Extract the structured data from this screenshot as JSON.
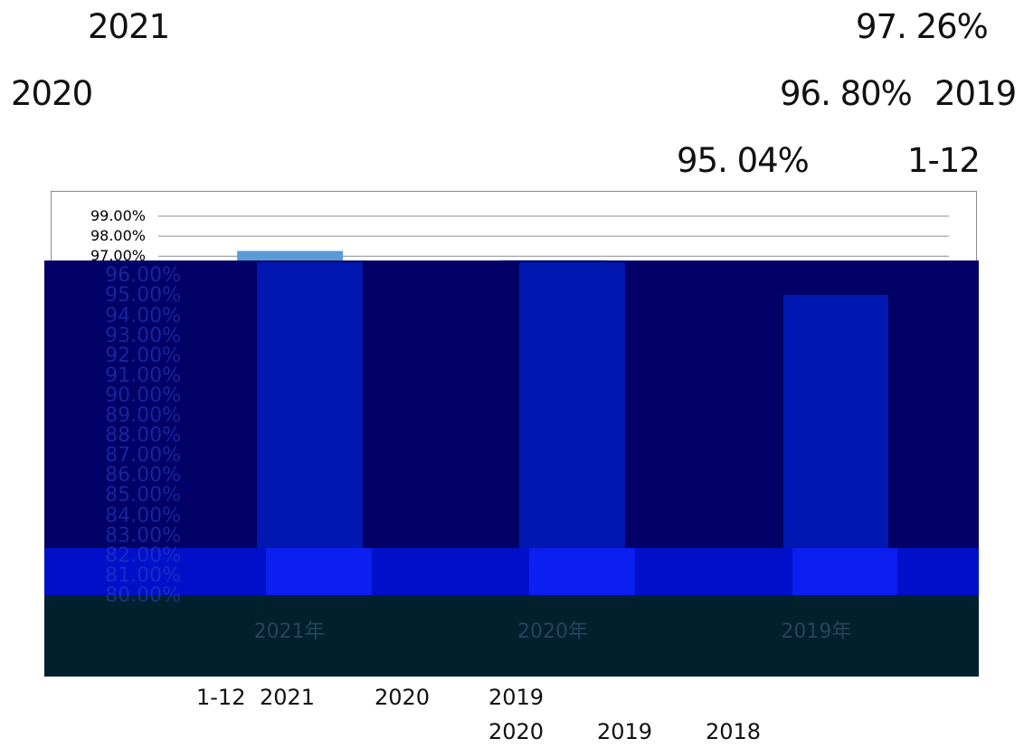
{
  "text": {
    "l1_left": "2021",
    "l1_right": "97. 26%",
    "l2_left": "2020",
    "l2_mid": "96. 80%",
    "l2_right": "2019",
    "l3_mid": "95. 04%",
    "l3_right": "1-12",
    "caption1_a": "1-12",
    "caption1_b": "2021",
    "caption1_c": "2020",
    "caption1_d": "2019",
    "caption2_a": "2020",
    "caption2_b": "2019",
    "caption2_c": "2018"
  },
  "colors": {
    "bar_light": "#5b9bd5",
    "overlay_dark": "#000066",
    "overlay_bar": "#0018b0",
    "overlay_band": "#0010c8",
    "overlay_band_bar": "#0a1ff0",
    "overlay_bottom": "#00202e",
    "gridline": "#8c8c8c"
  },
  "chart_data": {
    "type": "bar",
    "categories": [
      "2021年",
      "2020年",
      "2019年"
    ],
    "values": [
      97.26,
      96.8,
      95.04
    ],
    "ylim": [
      80,
      99
    ],
    "ytick_labels": [
      "99.00%",
      "98.00%",
      "97.00%",
      "96.00%",
      "95.00%",
      "94.00%",
      "93.00%",
      "92.00%",
      "91.00%",
      "90.00%",
      "89.00%",
      "88.00%",
      "87.00%",
      "86.00%",
      "85.00%",
      "84.00%",
      "83.00%",
      "82.00%",
      "81.00%",
      "80.00%"
    ],
    "grid": true,
    "legend": "none"
  }
}
